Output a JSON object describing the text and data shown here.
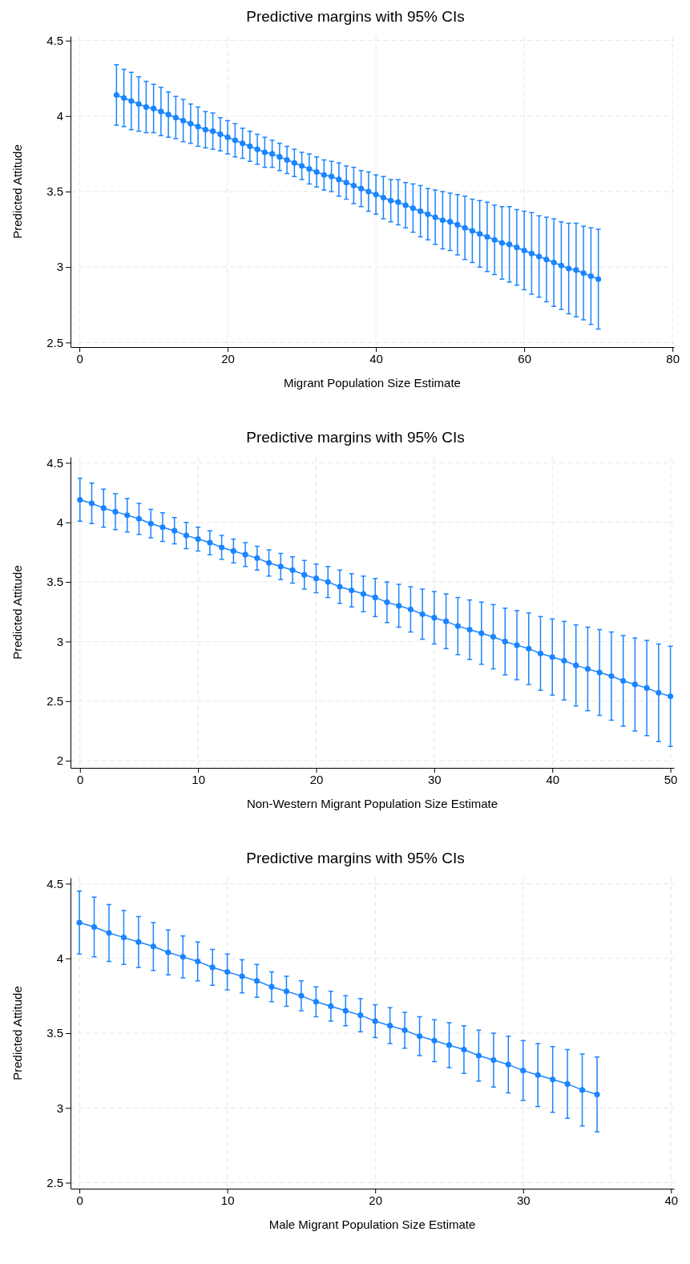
{
  "chart_data": [
    {
      "type": "line",
      "title": "Predictive margins with 95% CIs",
      "xlabel": "Migrant Population Size Estimate",
      "ylabel": "Predicted Attitude",
      "marker": "circle",
      "grid": true,
      "xlim": [
        -1.2,
        80.2
      ],
      "xticks": [
        0,
        20,
        40,
        60,
        80
      ],
      "ylim": [
        2.47,
        4.53
      ],
      "yticks": [
        2.5,
        3,
        3.5,
        4,
        4.5
      ],
      "x": [
        5,
        6,
        7,
        8,
        9,
        10,
        11,
        12,
        13,
        14,
        15,
        16,
        17,
        18,
        19,
        20,
        21,
        22,
        23,
        24,
        25,
        26,
        27,
        28,
        29,
        30,
        31,
        32,
        33,
        34,
        35,
        36,
        37,
        38,
        39,
        40,
        41,
        42,
        43,
        44,
        45,
        46,
        47,
        48,
        49,
        50,
        51,
        52,
        53,
        54,
        55,
        56,
        57,
        58,
        59,
        60,
        61,
        62,
        63,
        64,
        65,
        66,
        67,
        68,
        69,
        70
      ],
      "series": [
        {
          "color": "#1a85ff",
          "values": [
            4.14,
            4.12,
            4.1,
            4.08,
            4.06,
            4.05,
            4.03,
            4.01,
            3.99,
            3.97,
            3.95,
            3.93,
            3.91,
            3.9,
            3.88,
            3.86,
            3.84,
            3.82,
            3.8,
            3.78,
            3.76,
            3.75,
            3.73,
            3.71,
            3.69,
            3.67,
            3.65,
            3.63,
            3.61,
            3.6,
            3.58,
            3.56,
            3.54,
            3.52,
            3.5,
            3.48,
            3.46,
            3.44,
            3.43,
            3.41,
            3.39,
            3.37,
            3.35,
            3.33,
            3.31,
            3.3,
            3.28,
            3.26,
            3.24,
            3.22,
            3.2,
            3.18,
            3.16,
            3.15,
            3.13,
            3.11,
            3.09,
            3.07,
            3.05,
            3.03,
            3.01,
            2.99,
            2.98,
            2.96,
            2.94,
            2.92
          ],
          "errors": [
            0.2,
            0.19,
            0.19,
            0.18,
            0.17,
            0.16,
            0.16,
            0.15,
            0.14,
            0.14,
            0.13,
            0.13,
            0.12,
            0.12,
            0.11,
            0.11,
            0.11,
            0.1,
            0.1,
            0.1,
            0.1,
            0.09,
            0.09,
            0.09,
            0.09,
            0.09,
            0.1,
            0.1,
            0.1,
            0.1,
            0.11,
            0.11,
            0.12,
            0.12,
            0.13,
            0.13,
            0.14,
            0.14,
            0.15,
            0.15,
            0.16,
            0.17,
            0.17,
            0.18,
            0.19,
            0.19,
            0.2,
            0.21,
            0.21,
            0.22,
            0.23,
            0.23,
            0.24,
            0.25,
            0.25,
            0.26,
            0.27,
            0.27,
            0.28,
            0.29,
            0.29,
            0.3,
            0.31,
            0.31,
            0.32,
            0.33
          ]
        }
      ]
    },
    {
      "type": "line",
      "title": "Predictive margins with 95% CIs",
      "xlabel": "Non-Western Migrant Population Size Estimate",
      "ylabel": "Predicted Attitude",
      "marker": "circle",
      "grid": true,
      "xlim": [
        -0.8,
        50.3
      ],
      "xticks": [
        0,
        10,
        20,
        30,
        40,
        50
      ],
      "ylim": [
        1.94,
        4.55
      ],
      "yticks": [
        2,
        2.5,
        3,
        3.5,
        4,
        4.5
      ],
      "x": [
        0,
        1,
        2,
        3,
        4,
        5,
        6,
        7,
        8,
        9,
        10,
        11,
        12,
        13,
        14,
        15,
        16,
        17,
        18,
        19,
        20,
        21,
        22,
        23,
        24,
        25,
        26,
        27,
        28,
        29,
        30,
        31,
        32,
        33,
        34,
        35,
        36,
        37,
        38,
        39,
        40,
        41,
        42,
        43,
        44,
        45,
        46,
        47,
        48,
        49,
        50
      ],
      "series": [
        {
          "color": "#1a85ff",
          "values": [
            4.19,
            4.16,
            4.12,
            4.09,
            4.06,
            4.03,
            3.99,
            3.96,
            3.93,
            3.89,
            3.86,
            3.83,
            3.79,
            3.76,
            3.73,
            3.7,
            3.66,
            3.63,
            3.6,
            3.56,
            3.53,
            3.5,
            3.46,
            3.43,
            3.4,
            3.37,
            3.33,
            3.3,
            3.27,
            3.23,
            3.2,
            3.17,
            3.13,
            3.1,
            3.07,
            3.04,
            3.0,
            2.97,
            2.94,
            2.9,
            2.87,
            2.84,
            2.8,
            2.77,
            2.74,
            2.71,
            2.67,
            2.64,
            2.61,
            2.57,
            2.54
          ],
          "errors": [
            0.18,
            0.17,
            0.16,
            0.15,
            0.14,
            0.13,
            0.12,
            0.12,
            0.11,
            0.11,
            0.1,
            0.1,
            0.1,
            0.1,
            0.1,
            0.1,
            0.11,
            0.11,
            0.11,
            0.12,
            0.12,
            0.13,
            0.14,
            0.14,
            0.15,
            0.16,
            0.17,
            0.18,
            0.19,
            0.21,
            0.22,
            0.23,
            0.24,
            0.25,
            0.26,
            0.27,
            0.28,
            0.29,
            0.3,
            0.31,
            0.32,
            0.33,
            0.34,
            0.35,
            0.36,
            0.37,
            0.38,
            0.39,
            0.4,
            0.41,
            0.42
          ]
        }
      ]
    },
    {
      "type": "line",
      "title": "Predictive margins with 95% CIs",
      "xlabel": "Male Migrant Population Size Estimate",
      "ylabel": "Predicted Attitude",
      "marker": "circle",
      "grid": true,
      "xlim": [
        -0.6,
        40.2
      ],
      "xticks": [
        0,
        10,
        20,
        30,
        40
      ],
      "ylim": [
        2.46,
        4.54
      ],
      "yticks": [
        2.5,
        3,
        3.5,
        4,
        4.5
      ],
      "x": [
        0,
        1,
        2,
        3,
        4,
        5,
        6,
        7,
        8,
        9,
        10,
        11,
        12,
        13,
        14,
        15,
        16,
        17,
        18,
        19,
        20,
        21,
        22,
        23,
        24,
        25,
        26,
        27,
        28,
        29,
        30,
        31,
        32,
        33,
        34,
        35
      ],
      "series": [
        {
          "color": "#1a85ff",
          "values": [
            4.24,
            4.21,
            4.17,
            4.14,
            4.11,
            4.08,
            4.04,
            4.01,
            3.98,
            3.94,
            3.91,
            3.88,
            3.85,
            3.81,
            3.78,
            3.75,
            3.71,
            3.68,
            3.65,
            3.62,
            3.58,
            3.55,
            3.52,
            3.48,
            3.45,
            3.42,
            3.39,
            3.35,
            3.32,
            3.29,
            3.25,
            3.22,
            3.19,
            3.16,
            3.12,
            3.09
          ],
          "errors": [
            0.21,
            0.2,
            0.19,
            0.18,
            0.17,
            0.16,
            0.15,
            0.14,
            0.13,
            0.12,
            0.12,
            0.11,
            0.11,
            0.1,
            0.1,
            0.1,
            0.1,
            0.1,
            0.1,
            0.11,
            0.11,
            0.12,
            0.12,
            0.13,
            0.14,
            0.15,
            0.16,
            0.17,
            0.18,
            0.19,
            0.2,
            0.21,
            0.22,
            0.23,
            0.24,
            0.25
          ]
        }
      ]
    }
  ]
}
